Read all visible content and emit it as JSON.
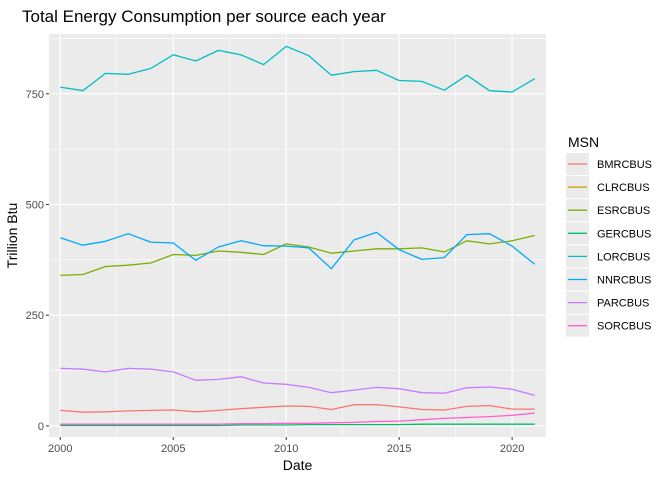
{
  "chart_data": {
    "type": "line",
    "title": "Total Energy Consumption per source each year",
    "xlabel": "Date",
    "ylabel": "Trillion Btu",
    "xlim": [
      1999.5,
      2021.5
    ],
    "ylim": [
      -25,
      885
    ],
    "x_ticks": [
      2000,
      2005,
      2010,
      2015,
      2020
    ],
    "y_ticks": [
      0,
      250,
      500,
      750
    ],
    "grid": true,
    "legend_title": "MSN",
    "legend_position": "right",
    "x": [
      2000,
      2001,
      2002,
      2003,
      2004,
      2005,
      2006,
      2007,
      2008,
      2009,
      2010,
      2011,
      2012,
      2013,
      2014,
      2015,
      2016,
      2017,
      2018,
      2019,
      2020,
      2021
    ],
    "series": [
      {
        "name": "BMRCBUS",
        "color": "#F8766D",
        "values": [
          35,
          31,
          32,
          34,
          35,
          36,
          32,
          35,
          39,
          42,
          45,
          44,
          37,
          48,
          48,
          43,
          37,
          36,
          44,
          46,
          38,
          38
        ]
      },
      {
        "name": "CLRCBUS",
        "color": "#CD9600",
        "values": [
          2,
          2,
          2,
          2,
          2,
          2,
          2,
          2,
          null,
          null,
          null,
          null,
          null,
          null,
          null,
          null,
          null,
          null,
          null,
          null,
          null,
          null
        ]
      },
      {
        "name": "ESRCBUS",
        "color": "#7CAE00",
        "values": [
          340,
          342,
          360,
          363,
          368,
          387,
          385,
          395,
          392,
          387,
          411,
          404,
          390,
          395,
          400,
          400,
          402,
          393,
          418,
          411,
          418,
          430
        ]
      },
      {
        "name": "GERCBUS",
        "color": "#00BE67",
        "values": [
          1,
          1,
          1,
          1,
          1,
          1,
          1,
          1,
          2,
          2,
          2,
          3,
          3,
          3,
          3,
          3,
          4,
          4,
          4,
          4,
          4,
          4
        ]
      },
      {
        "name": "LORCBUS",
        "color": "#00BFC4",
        "values": [
          765,
          757,
          796,
          794,
          807,
          838,
          824,
          848,
          838,
          816,
          857,
          836,
          792,
          800,
          803,
          780,
          778,
          758,
          792,
          757,
          754,
          784
        ]
      },
      {
        "name": "NNRCBUS",
        "color": "#00A9FF",
        "values": [
          425,
          408,
          417,
          434,
          415,
          413,
          374,
          404,
          418,
          407,
          406,
          402,
          355,
          420,
          437,
          398,
          376,
          380,
          432,
          434,
          406,
          365
        ]
      },
      {
        "name": "PARCBUS",
        "color": "#C77CFF",
        "values": [
          130,
          128,
          122,
          130,
          128,
          122,
          103,
          105,
          111,
          97,
          94,
          87,
          75,
          81,
          87,
          84,
          75,
          74,
          86,
          88,
          83,
          69
        ]
      },
      {
        "name": "SORCBUS",
        "color": "#FF61CC",
        "values": [
          4,
          4,
          4,
          4,
          4,
          4,
          4,
          4,
          5,
          5,
          6,
          6,
          7,
          8,
          10,
          11,
          14,
          17,
          19,
          21,
          24,
          29
        ]
      }
    ]
  }
}
